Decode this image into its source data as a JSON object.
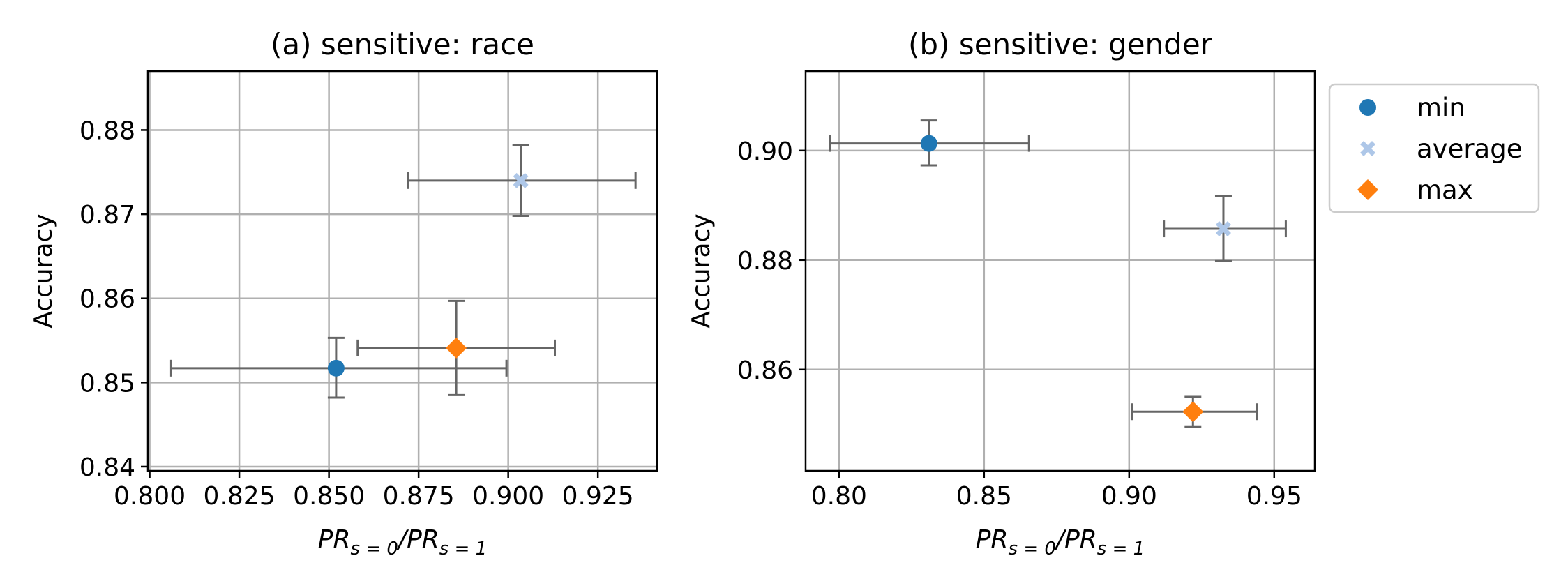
{
  "chart_data": [
    {
      "type": "scatter",
      "title": "(a) sensitive: race",
      "xlabel": {
        "base": "PR",
        "sub1": "s = 0",
        "sep": "/",
        "sub2": "s = 1"
      },
      "ylabel": "Accuracy",
      "xlim": [
        0.7995,
        0.9415
      ],
      "ylim": [
        0.8395,
        0.887
      ],
      "xticks": [
        0.8,
        0.825,
        0.85,
        0.875,
        0.9,
        0.925
      ],
      "xtick_labels": [
        "0.800",
        "0.825",
        "0.850",
        "0.875",
        "0.900",
        "0.925"
      ],
      "yticks": [
        0.84,
        0.85,
        0.86,
        0.87,
        0.88
      ],
      "ytick_labels": [
        "0.84",
        "0.85",
        "0.86",
        "0.87",
        "0.88"
      ],
      "grid": true,
      "series": [
        {
          "name": "min",
          "x": 0.852,
          "y": 0.8517,
          "xerr": [
            0.806,
            0.8995
          ],
          "yerr": [
            0.8482,
            0.8553
          ]
        },
        {
          "name": "average",
          "x": 0.9035,
          "y": 0.874,
          "xerr": [
            0.872,
            0.9355
          ],
          "yerr": [
            0.8698,
            0.8782
          ]
        },
        {
          "name": "max",
          "x": 0.8855,
          "y": 0.8541,
          "xerr": [
            0.858,
            0.913
          ],
          "yerr": [
            0.8485,
            0.8597
          ]
        }
      ]
    },
    {
      "type": "scatter",
      "title": "(b) sensitive: gender",
      "xlabel": {
        "base": "PR",
        "sub1": "s = 0",
        "sep": "/",
        "sub2": "s = 1"
      },
      "ylabel": "Accuracy",
      "xlim": [
        0.7885,
        0.964
      ],
      "ylim": [
        0.8415,
        0.9145
      ],
      "xticks": [
        0.8,
        0.85,
        0.9,
        0.95
      ],
      "xtick_labels": [
        "0.80",
        "0.85",
        "0.90",
        "0.95"
      ],
      "yticks": [
        0.86,
        0.88,
        0.9
      ],
      "ytick_labels": [
        "0.86",
        "0.88",
        "0.90"
      ],
      "grid": true,
      "series": [
        {
          "name": "min",
          "x": 0.831,
          "y": 0.9013,
          "xerr": [
            0.797,
            0.8655
          ],
          "yerr": [
            0.8973,
            0.9055
          ]
        },
        {
          "name": "average",
          "x": 0.9325,
          "y": 0.8857,
          "xerr": [
            0.912,
            0.954
          ],
          "yerr": [
            0.8798,
            0.8917
          ]
        },
        {
          "name": "max",
          "x": 0.922,
          "y": 0.8523,
          "xerr": [
            0.901,
            0.944
          ],
          "yerr": [
            0.8495,
            0.855
          ]
        }
      ]
    }
  ],
  "legend": {
    "placement": "right of second plot, upper",
    "entries": [
      {
        "label": "min",
        "marker": "circle",
        "color": "#1f77b4"
      },
      {
        "label": "average",
        "marker": "x",
        "color": "#aec7e8"
      },
      {
        "label": "max",
        "marker": "diamond",
        "color": "#ff7f0e"
      }
    ]
  },
  "colors": {
    "min": "#1f77b4",
    "average": "#aec7e8",
    "max": "#ff7f0e",
    "errorbar": "#666666",
    "grid": "#b0b0b0",
    "axes": "#000000"
  }
}
